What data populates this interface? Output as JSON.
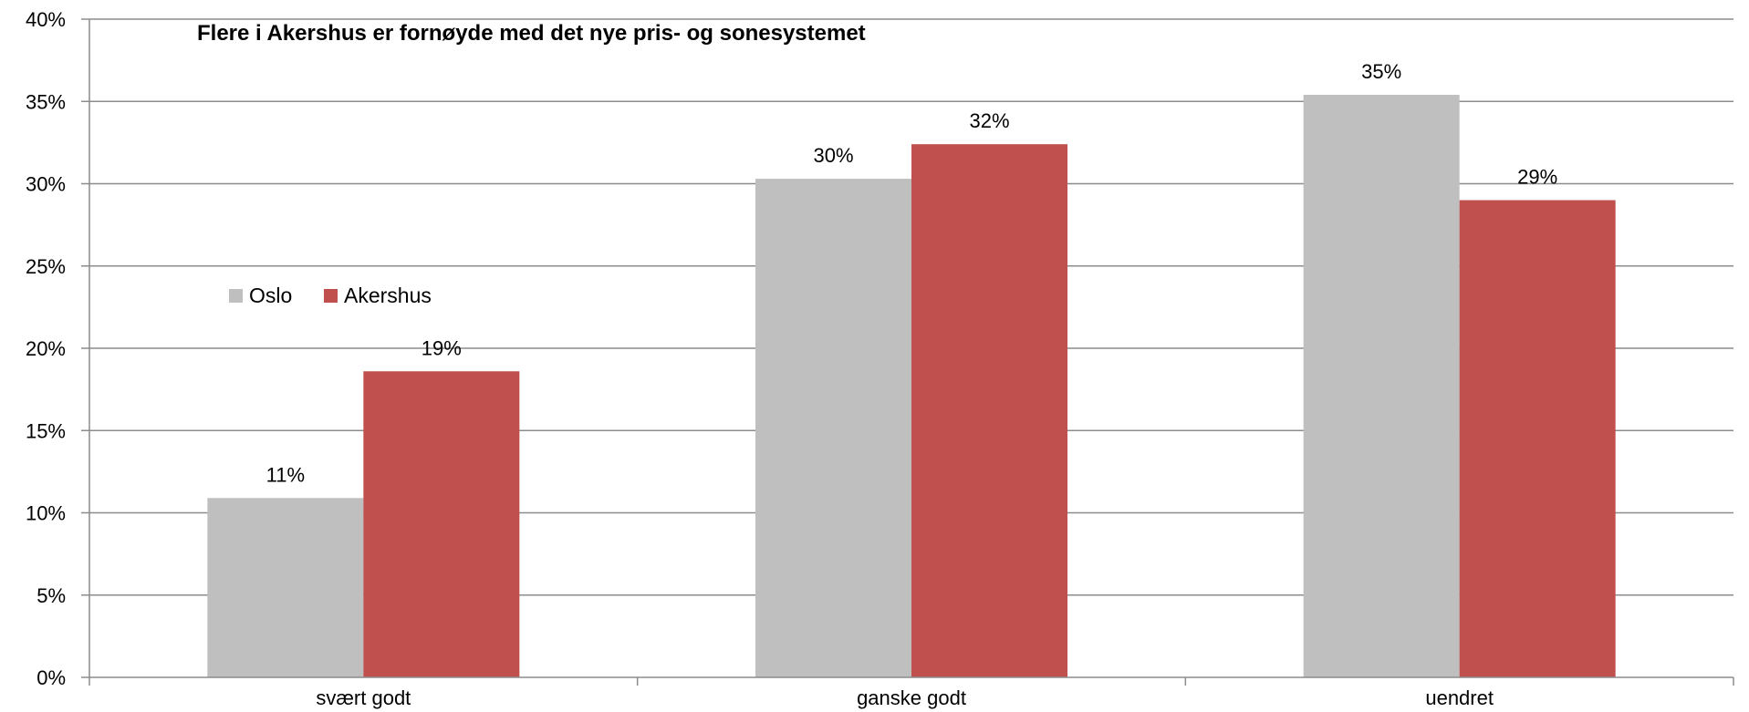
{
  "chart_data": {
    "type": "bar",
    "title": "Flere i Akershus  er fornøyde med det nye pris- og sonesystemet",
    "categories": [
      "svært godt",
      "ganske godt",
      "uendret"
    ],
    "series": [
      {
        "name": "Oslo",
        "values": [
          0.109,
          0.303,
          0.354
        ],
        "labels": [
          "11%",
          "30%",
          "35%"
        ],
        "color": "#bfbfbf"
      },
      {
        "name": "Akershus",
        "values": [
          0.186,
          0.324,
          0.29
        ],
        "labels": [
          "19%",
          "32%",
          "29%"
        ],
        "color": "#c0504d"
      }
    ],
    "ylim": [
      0,
      0.4
    ],
    "y_ticks": [
      {
        "value": 0.0,
        "label": "0%"
      },
      {
        "value": 0.05,
        "label": "5%"
      },
      {
        "value": 0.1,
        "label": "10%"
      },
      {
        "value": 0.15,
        "label": "15%"
      },
      {
        "value": 0.2,
        "label": "20%"
      },
      {
        "value": 0.25,
        "label": "25%"
      },
      {
        "value": 0.3,
        "label": "30%"
      },
      {
        "value": 0.35,
        "label": "35%"
      },
      {
        "value": 0.4,
        "label": "40%"
      }
    ],
    "grid": true,
    "legend_position": "left, mid-height"
  }
}
